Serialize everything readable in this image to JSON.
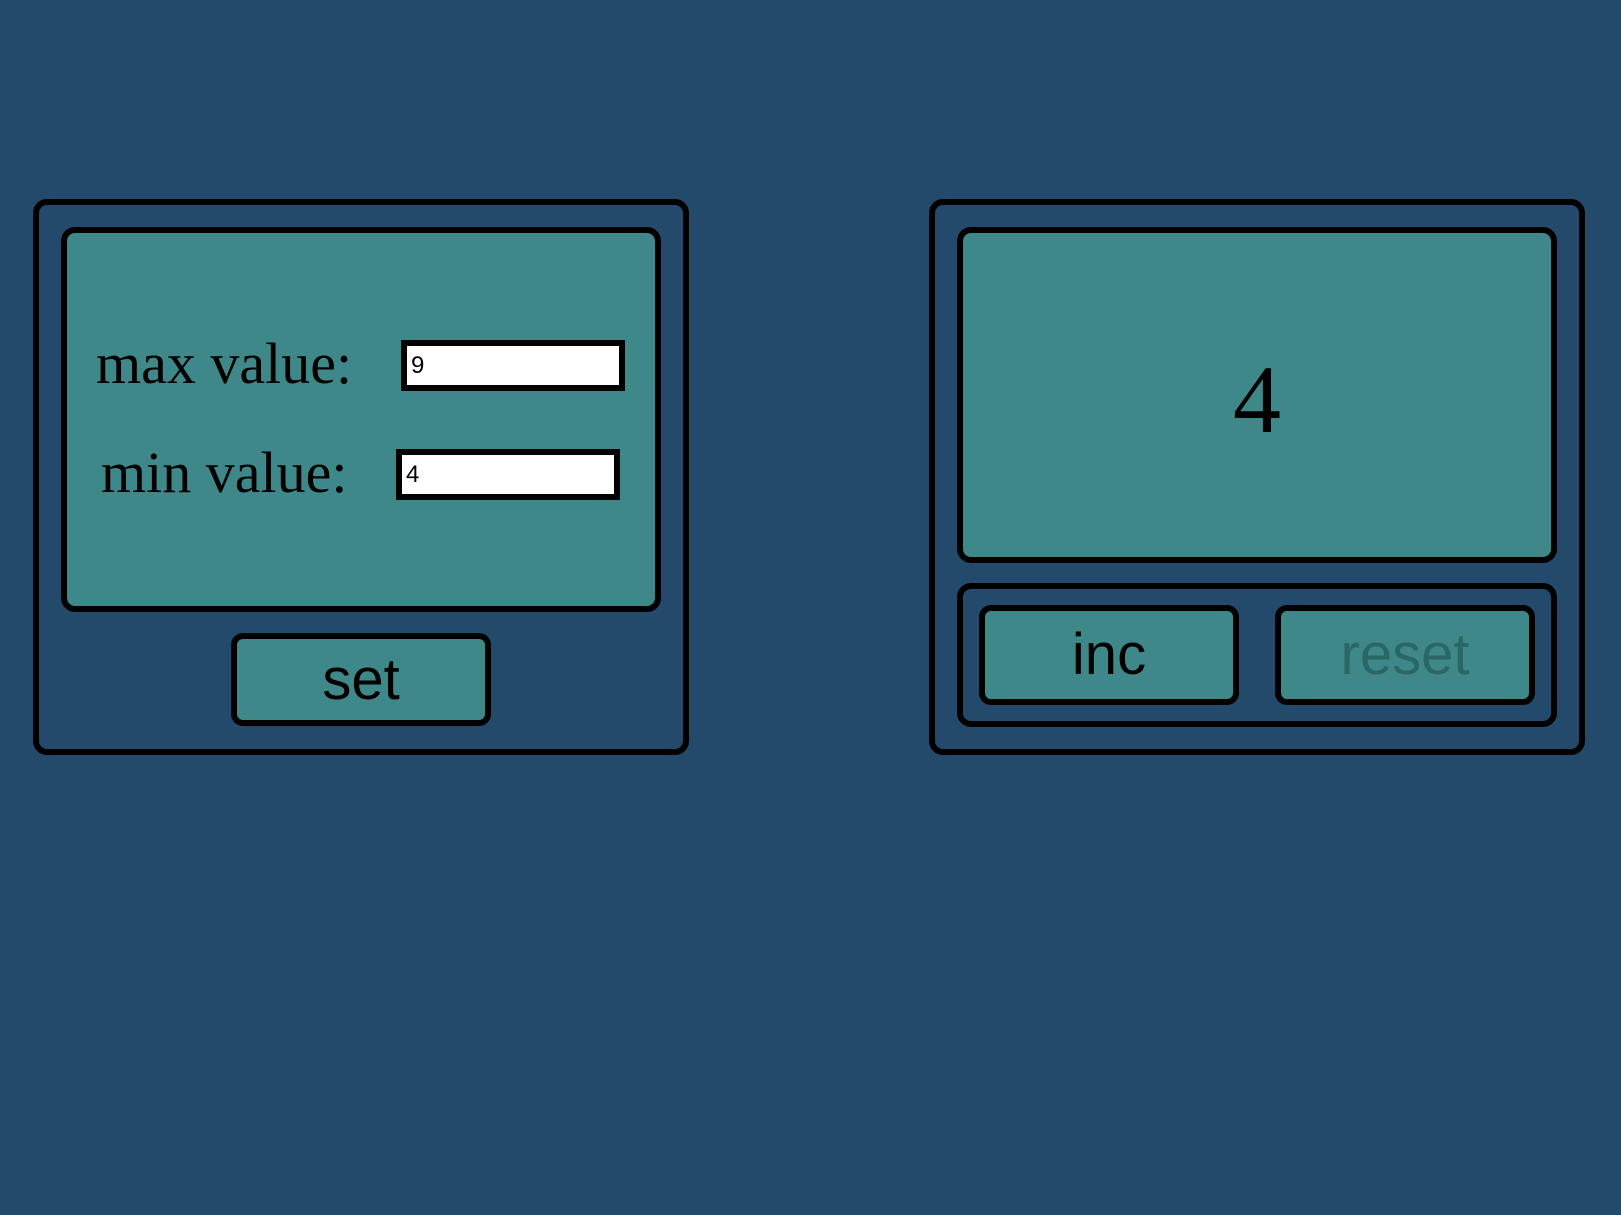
{
  "settings": {
    "max_label": "max value:",
    "max_value": "9",
    "min_label": "min value:",
    "min_value": "4",
    "set_label": "set"
  },
  "counter": {
    "value": "4",
    "inc_label": "inc",
    "reset_label": "reset"
  },
  "colors": {
    "background": "#234a6a",
    "panel_fill": "#3e8889",
    "border": "#000000",
    "disabled_text": "#2a6767"
  }
}
